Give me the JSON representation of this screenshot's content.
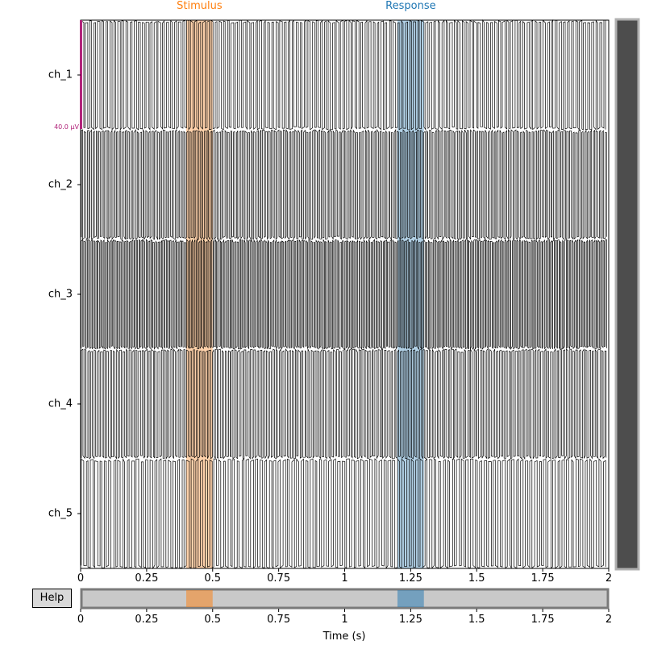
{
  "annotations": [
    {
      "label": "Stimulus",
      "onset": 0.4,
      "offset": 0.5,
      "color": "#ff7f0e"
    },
    {
      "label": "Response",
      "onset": 1.2,
      "offset": 1.3,
      "color": "#1f77b4"
    }
  ],
  "channels": [
    "ch_1",
    "ch_2",
    "ch_3",
    "ch_4",
    "ch_5"
  ],
  "scale_bar": {
    "label": "40.0 µV",
    "color": "#b2257b"
  },
  "help_button": {
    "label": "Help"
  },
  "colors": {
    "trace": "#000000",
    "scrollbar": "#4d4d4d",
    "scrollbar_border": "#b0b0b0",
    "overview": "#c9c9c9"
  },
  "chart_data": {
    "type": "line",
    "xlabel": "Time (s)",
    "xlim": [
      0,
      2
    ],
    "xticks": [
      "0",
      "0.25",
      "0.5",
      "0.75",
      "1",
      "1.25",
      "1.5",
      "1.75",
      "2"
    ],
    "xtick_values": [
      0,
      0.25,
      0.5,
      0.75,
      1,
      1.25,
      1.5,
      1.75,
      2
    ],
    "series": [
      {
        "name": "ch_1"
      },
      {
        "name": "ch_2"
      },
      {
        "name": "ch_3"
      },
      {
        "name": "ch_4"
      },
      {
        "name": "ch_5"
      }
    ]
  }
}
